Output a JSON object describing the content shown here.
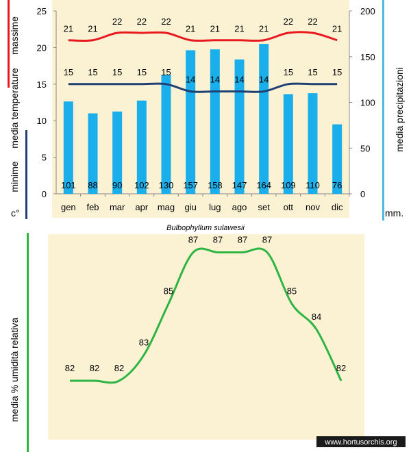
{
  "colors": {
    "panel_bg": "#fbf2d4",
    "max_line": "#e8191f",
    "min_line": "#1e3f73",
    "bars": "#1aaeea",
    "humidity_line": "#2db442",
    "left_bar_red": "#e8191f",
    "left_bar_navy": "#1e3f73",
    "right_bar": "#4fb7e6"
  },
  "labels": {
    "massime": "massime",
    "media_temperature": "media  temperature",
    "minime": "minime",
    "celsius": "c°",
    "media_precipitazioni": "media  precipitazioni",
    "mm": "mm.",
    "species": "Bulbophyllum sulawesii",
    "media_umidita": "media %  umidità relativa",
    "watermark": "www.hortusorchis.org"
  },
  "chart_data": [
    {
      "type": "bar",
      "name": "climate",
      "categories": [
        "gen",
        "feb",
        "mar",
        "apr",
        "mag",
        "giu",
        "lug",
        "ago",
        "set",
        "ott",
        "nov",
        "dic"
      ],
      "series": [
        {
          "name": "precipitazioni",
          "axis": "right",
          "type": "bar",
          "values": [
            101,
            88,
            90,
            102,
            130,
            157,
            158,
            147,
            164,
            109,
            110,
            76
          ]
        },
        {
          "name": "massime",
          "axis": "left",
          "type": "line",
          "values": [
            21,
            21,
            22,
            22,
            22,
            21,
            21,
            21,
            21,
            22,
            22,
            21
          ]
        },
        {
          "name": "minime",
          "axis": "left",
          "type": "line",
          "values": [
            15,
            15,
            15,
            15,
            15,
            14,
            14,
            14,
            14,
            15,
            15,
            15
          ]
        }
      ],
      "y_left": {
        "min": 0,
        "max": 25,
        "ticks": [
          0,
          5,
          10,
          15,
          20,
          25
        ]
      },
      "y_right": {
        "min": 0,
        "max": 200,
        "ticks": [
          0,
          50,
          100,
          150,
          200
        ]
      }
    },
    {
      "type": "line",
      "name": "humidity",
      "categories": [
        "gen",
        "feb",
        "mar",
        "apr",
        "mag",
        "giu",
        "lug",
        "ago",
        "set",
        "ott",
        "nov",
        "dic"
      ],
      "values": [
        82,
        82,
        82,
        83,
        85,
        87,
        87,
        87,
        87,
        85,
        84,
        82
      ]
    }
  ]
}
